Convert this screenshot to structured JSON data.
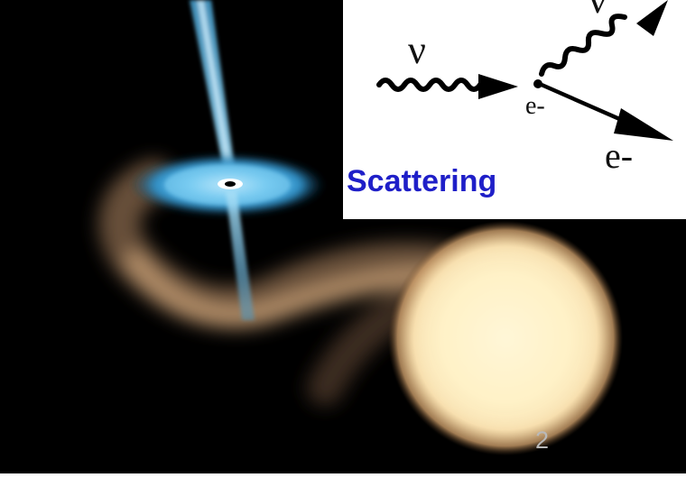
{
  "diagram": {
    "incoming_particle_label": "ν",
    "outgoing_particle_label": "ν",
    "target_vertex_label": "e-",
    "outgoing_electron_label": "e-"
  },
  "caption": "Scattering",
  "page_number": "2",
  "colors": {
    "caption": "#1f1fc8",
    "background": "#000000",
    "jet": "#59b9e8",
    "star": "#fff1c4",
    "page_number": "#b9b9b9"
  }
}
